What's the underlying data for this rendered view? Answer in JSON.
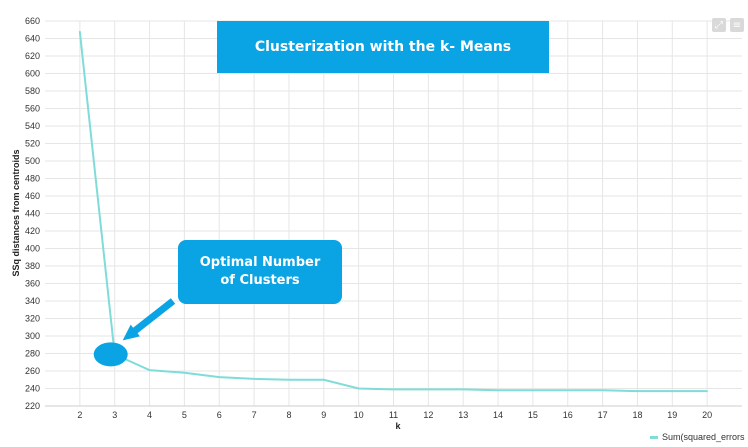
{
  "title_box": "Clusterization with the k- Means",
  "annotation": {
    "line1": "Optimal Number",
    "line2": "of Clusters"
  },
  "toolbar": {
    "expand_icon": "expand-icon",
    "menu_icon": "menu-icon"
  },
  "legend": {
    "label": "Sum(squared_errors"
  },
  "colors": {
    "line": "#7fdcd8",
    "accent": "#0aa3e4",
    "grid": "#e6e6e6"
  },
  "chart_data": {
    "type": "line",
    "title": "Clusterization with the k- Means",
    "xlabel": "k",
    "ylabel": "SSq distances from centroids",
    "x": [
      2,
      3,
      4,
      5,
      6,
      7,
      8,
      9,
      10,
      11,
      12,
      13,
      14,
      15,
      16,
      17,
      18,
      19,
      20
    ],
    "series": [
      {
        "name": "Sum(squared_errors",
        "values": [
          648,
          279,
          261,
          258,
          253,
          251,
          250,
          250,
          240,
          239,
          239,
          239,
          238,
          238,
          238,
          238,
          237,
          237,
          237
        ]
      }
    ],
    "ylim": [
      220,
      660
    ],
    "yticks": [
      220,
      240,
      260,
      280,
      300,
      320,
      340,
      360,
      380,
      400,
      420,
      440,
      460,
      480,
      500,
      520,
      540,
      560,
      580,
      600,
      620,
      640,
      660
    ],
    "xlim": [
      1,
      21
    ],
    "grid": true,
    "legend_position": "bottom-right",
    "highlight_point": {
      "x": 3,
      "y": 279
    }
  }
}
